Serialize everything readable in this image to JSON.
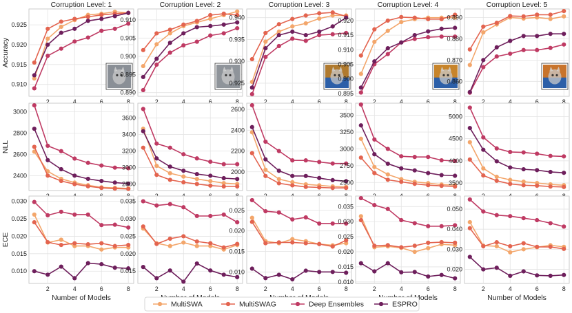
{
  "figure": {
    "x_label": "Number of Models",
    "row_labels": [
      "Accuracy",
      "NLL",
      "ECE"
    ],
    "column_titles": [
      "Corruption Level: 1",
      "Corruption Level: 2",
      "Corruption Level: 3",
      "Corruption Level: 4",
      "Corruption Level: 5"
    ],
    "thumbnail_description_tints": [
      "#8a8f96",
      "#8f949a",
      "#b07a2e",
      "#c7842a",
      "#c8742c"
    ]
  },
  "legend": [
    {
      "name": "MultiSWA",
      "color": "#f3a66b"
    },
    {
      "name": "MultiSWAG",
      "color": "#e3644f"
    },
    {
      "name": "Deep Ensembles",
      "color": "#bf3a63"
    },
    {
      "name": "ESPRO",
      "color": "#6e1f5c"
    }
  ],
  "chart_data": {
    "type": "line",
    "x": [
      1,
      2,
      3,
      4,
      5,
      6,
      7,
      8
    ],
    "x_ticks": [
      2,
      4,
      6,
      8
    ],
    "xlabel": "Number of Models",
    "series_names": [
      "MultiSWA",
      "MultiSWAG",
      "Deep Ensembles",
      "ESPRO"
    ],
    "panels": [
      {
        "row": 0,
        "col": 0,
        "title": "Corruption Level: 1",
        "ylabel": "Accuracy",
        "ylim": [
          0.907,
          0.929
        ],
        "yticks": [
          "0.910",
          "0.915",
          "0.920",
          "0.925"
        ],
        "ytick_values": [
          0.91,
          0.915,
          0.92,
          0.925
        ],
        "series": [
          [
            0.9115,
            0.9215,
            0.9245,
            0.9262,
            0.9275,
            0.9278,
            0.9283,
            0.928
          ],
          [
            0.9155,
            0.924,
            0.9258,
            0.9265,
            0.927,
            0.9275,
            0.9278,
            0.928
          ],
          [
            0.909,
            0.9172,
            0.919,
            0.9208,
            0.9218,
            0.9235,
            0.924,
            0.9253
          ],
          [
            0.9123,
            0.92,
            0.923,
            0.924,
            0.926,
            0.9265,
            0.9272,
            0.928
          ]
        ]
      },
      {
        "row": 0,
        "col": 1,
        "title": "Corruption Level: 2",
        "ylabel": "",
        "ylim": [
          0.889,
          0.913
        ],
        "yticks": [
          "0.890",
          "0.895",
          "0.900",
          "0.905",
          "0.910"
        ],
        "ytick_values": [
          0.89,
          0.895,
          0.9,
          0.905,
          0.91
        ],
        "series": [
          [
            0.8973,
            0.9033,
            0.9063,
            0.9083,
            0.9093,
            0.9103,
            0.9113,
            0.9123
          ],
          [
            0.9017,
            0.9063,
            0.9073,
            0.9087,
            0.9097,
            0.9113,
            0.9117,
            0.9113
          ],
          [
            0.8907,
            0.8977,
            0.901,
            0.903,
            0.904,
            0.9057,
            0.9063,
            0.9077
          ],
          [
            0.8943,
            0.8993,
            0.9037,
            0.9063,
            0.908,
            0.9083,
            0.9087,
            0.9093
          ]
        ]
      },
      {
        "row": 0,
        "col": 2,
        "title": "Corruption Level: 3",
        "ylabel": "",
        "ylim": [
          0.922,
          0.942
        ],
        "yticks": [
          "0.925",
          "0.930",
          "0.935",
          "0.940"
        ],
        "ytick_values": [
          0.925,
          0.93,
          0.935,
          0.94
        ],
        "series": [
          [
            0.9253,
            0.9345,
            0.9368,
            0.938,
            0.9387,
            0.9398,
            0.9405,
            0.9405
          ],
          [
            0.9305,
            0.9365,
            0.9385,
            0.9397,
            0.9405,
            0.941,
            0.9412,
            0.9403
          ],
          [
            0.9225,
            0.931,
            0.9335,
            0.9352,
            0.9347,
            0.936,
            0.9362,
            0.9365
          ],
          [
            0.924,
            0.933,
            0.936,
            0.9368,
            0.936,
            0.9368,
            0.938,
            0.94
          ]
        ]
      },
      {
        "row": 0,
        "col": 3,
        "title": "Corruption Level: 4",
        "ylabel": "",
        "ylim": [
          0.894,
          0.924
        ],
        "yticks": [
          "0.895",
          "0.900",
          "0.905",
          "0.910",
          "0.915",
          "0.920"
        ],
        "ytick_values": [
          0.895,
          0.9,
          0.905,
          0.91,
          0.915,
          0.92
        ],
        "series": [
          [
            0.9017,
            0.9127,
            0.9165,
            0.9195,
            0.9205,
            0.921,
            0.921,
            0.921
          ],
          [
            0.908,
            0.917,
            0.92,
            0.9212,
            0.921,
            0.9205,
            0.9205,
            0.922
          ],
          [
            0.8953,
            0.905,
            0.9085,
            0.9125,
            0.9137,
            0.9143,
            0.9145,
            0.9145
          ],
          [
            0.897,
            0.906,
            0.9105,
            0.9125,
            0.915,
            0.9163,
            0.9172,
            0.9175
          ]
        ]
      },
      {
        "row": 0,
        "col": 4,
        "title": "Corruption Level: 5",
        "ylabel": "",
        "ylim": [
          0.853,
          0.894
        ],
        "yticks": [
          "0.860",
          "0.870",
          "0.880",
          "0.890"
        ],
        "ytick_values": [
          0.86,
          0.87,
          0.88,
          0.89
        ],
        "series": [
          [
            0.8677,
            0.883,
            0.8867,
            0.89,
            0.8895,
            0.89,
            0.8893,
            0.8905
          ],
          [
            0.875,
            0.8857,
            0.8875,
            0.8907,
            0.8905,
            0.8913,
            0.8913,
            0.893
          ],
          [
            0.8547,
            0.8667,
            0.8717,
            0.873,
            0.8747,
            0.8747,
            0.8757,
            0.8773
          ],
          [
            0.855,
            0.87,
            0.876,
            0.879,
            0.8813,
            0.8813,
            0.8823,
            0.8823
          ]
        ]
      },
      {
        "row": 1,
        "col": 0,
        "title": "",
        "ylabel": "NLL",
        "ylim": [
          2260,
          3080
        ],
        "yticks": [
          "2400",
          "2600",
          "2800",
          "3000"
        ],
        "ytick_values": [
          2400,
          2600,
          2800,
          3000
        ],
        "series": [
          [
            2625,
            2440,
            2370,
            2335,
            2310,
            2290,
            2285,
            2280
          ],
          [
            2670,
            2400,
            2350,
            2320,
            2300,
            2285,
            2278,
            2275
          ],
          [
            3060,
            2680,
            2630,
            2560,
            2520,
            2495,
            2475,
            2470
          ],
          [
            2840,
            2545,
            2460,
            2400,
            2370,
            2350,
            2335,
            2325
          ]
        ]
      },
      {
        "row": 1,
        "col": 1,
        "title": "",
        "ylabel": "",
        "ylim": [
          2720,
          3780
        ],
        "yticks": [
          "2800",
          "3000",
          "3200",
          "3400",
          "3600"
        ],
        "ytick_values": [
          2800,
          3000,
          3200,
          3400,
          3600
        ],
        "series": [
          [
            3470,
            3020,
            2930,
            2890,
            2860,
            2835,
            2810,
            2800
          ],
          [
            3240,
            2910,
            2850,
            2820,
            2800,
            2780,
            2770,
            2770
          ],
          [
            3710,
            3290,
            3240,
            3160,
            3110,
            3070,
            3040,
            3040
          ],
          [
            3440,
            3110,
            3010,
            2960,
            2920,
            2900,
            2870,
            2860
          ]
        ]
      },
      {
        "row": 1,
        "col": 2,
        "title": "",
        "ylabel": "",
        "ylim": [
          1820,
          2660
        ],
        "yticks": [
          "2000",
          "2200",
          "2400",
          "2600"
        ],
        "ytick_values": [
          2000,
          2200,
          2400,
          2600
        ],
        "series": [
          [
            2380,
            2020,
            1930,
            1900,
            1880,
            1870,
            1860,
            1855
          ],
          [
            2180,
            1960,
            1890,
            1870,
            1855,
            1850,
            1845,
            1845
          ],
          [
            2640,
            2290,
            2200,
            2110,
            2110,
            2095,
            2080,
            2080
          ],
          [
            2430,
            2120,
            2010,
            1960,
            1960,
            1940,
            1920,
            1910
          ]
        ]
      },
      {
        "row": 1,
        "col": 3,
        "title": "",
        "ylabel": "",
        "ylim": [
          2380,
          3680
        ],
        "yticks": [
          "2500",
          "2750",
          "3000",
          "3250",
          "3500"
        ],
        "ytick_values": [
          2500,
          2750,
          3000,
          3250,
          3500
        ],
        "series": [
          [
            3150,
            2730,
            2620,
            2550,
            2510,
            2490,
            2470,
            2460
          ],
          [
            2870,
            2640,
            2540,
            2510,
            2480,
            2460,
            2450,
            2440
          ],
          [
            3660,
            3140,
            3000,
            2890,
            2880,
            2880,
            2830,
            2820
          ],
          [
            3350,
            2920,
            2780,
            2710,
            2680,
            2640,
            2610,
            2600
          ]
        ]
      },
      {
        "row": 1,
        "col": 4,
        "title": "",
        "ylabel": "",
        "ylim": [
          3330,
          5300
        ],
        "yticks": [
          "3500",
          "4000",
          "4500",
          "5000"
        ],
        "ytick_values": [
          3500,
          4000,
          4500,
          5000
        ],
        "series": [
          [
            4420,
            3830,
            3640,
            3570,
            3530,
            3500,
            3470,
            3450
          ],
          [
            4030,
            3670,
            3550,
            3480,
            3450,
            3440,
            3420,
            3410
          ],
          [
            5200,
            4530,
            4280,
            4200,
            4190,
            4160,
            4110,
            4100
          ],
          [
            4740,
            4250,
            3990,
            3850,
            3810,
            3790,
            3750,
            3730
          ]
        ]
      },
      {
        "row": 2,
        "col": 0,
        "title": "",
        "ylabel": "ECE",
        "ylim": [
          0.0065,
          0.0315
        ],
        "yticks": [
          "0.010",
          "0.015",
          "0.020",
          "0.025",
          "0.030"
        ],
        "ytick_values": [
          0.01,
          0.015,
          0.02,
          0.025,
          0.03
        ],
        "series": [
          [
            0.0262,
            0.0182,
            0.019,
            0.0172,
            0.0172,
            0.0162,
            0.0168,
            0.0168
          ],
          [
            0.024,
            0.0183,
            0.0175,
            0.018,
            0.0177,
            0.018,
            0.0172,
            0.0175
          ],
          [
            0.0298,
            0.026,
            0.027,
            0.0262,
            0.0262,
            0.0232,
            0.0233,
            0.0225
          ],
          [
            0.01,
            0.009,
            0.0113,
            0.008,
            0.0123,
            0.012,
            0.011,
            0.0108
          ]
        ]
      },
      {
        "row": 2,
        "col": 1,
        "title": "",
        "ylabel": "",
        "ylim": [
          0.0115,
          0.0365
        ],
        "yticks": [
          "0.015",
          "0.020",
          "0.025",
          "0.030",
          "0.035"
        ],
        "ytick_values": [
          0.015,
          0.02,
          0.025,
          0.03,
          0.035
        ],
        "series": [
          [
            0.0272,
            0.023,
            0.0222,
            0.0232,
            0.0222,
            0.0222,
            0.0212,
            0.0225
          ],
          [
            0.0278,
            0.0228,
            0.0243,
            0.025,
            0.0235,
            0.023,
            0.0218,
            0.0228
          ],
          [
            0.035,
            0.0338,
            0.0342,
            0.0333,
            0.0308,
            0.0308,
            0.0312,
            0.029
          ],
          [
            0.0162,
            0.013,
            0.0152,
            0.012,
            0.0172,
            0.0152,
            0.014,
            0.0133
          ]
        ]
      },
      {
        "row": 2,
        "col": 2,
        "title": "",
        "ylabel": "",
        "ylim": [
          0.0072,
          0.0285
        ],
        "yticks": [
          "0.010",
          "0.015",
          "0.020",
          "0.025"
        ],
        "ytick_values": [
          0.01,
          0.015,
          0.02,
          0.025
        ],
        "series": [
          [
            0.0232,
            0.0175,
            0.017,
            0.018,
            0.0175,
            0.0168,
            0.0165,
            0.017
          ],
          [
            0.0222,
            0.017,
            0.0172,
            0.0172,
            0.017,
            0.0168,
            0.0162,
            0.0177
          ],
          [
            0.0275,
            0.0248,
            0.0245,
            0.0228,
            0.0233,
            0.0218,
            0.0218,
            0.0218
          ],
          [
            0.0108,
            0.0085,
            0.0093,
            0.0082,
            0.0103,
            0.01,
            0.01,
            0.0098
          ]
        ]
      },
      {
        "row": 2,
        "col": 3,
        "title": "",
        "ylabel": "",
        "ylim": [
          0.0095,
          0.0385
        ],
        "yticks": [
          "0.010",
          "0.015",
          "0.020",
          "0.025",
          "0.030",
          "0.035"
        ],
        "ytick_values": [
          0.01,
          0.015,
          0.02,
          0.025,
          0.03,
          0.035
        ],
        "series": [
          [
            0.0318,
            0.0215,
            0.0218,
            0.0213,
            0.02,
            0.0212,
            0.0225,
            0.0222
          ],
          [
            0.0305,
            0.022,
            0.0222,
            0.0215,
            0.022,
            0.023,
            0.0232,
            0.023
          ],
          [
            0.0378,
            0.0355,
            0.0342,
            0.0305,
            0.0295,
            0.0285,
            0.0285,
            0.0288
          ],
          [
            0.0162,
            0.0135,
            0.0162,
            0.0132,
            0.0133,
            0.0118,
            0.0123,
            0.0112
          ]
        ]
      },
      {
        "row": 2,
        "col": 4,
        "title": "",
        "ylabel": "",
        "ylim": [
          0.013,
          0.0565
        ],
        "yticks": [
          "0.020",
          "0.030",
          "0.040",
          "0.050"
        ],
        "ytick_values": [
          0.02,
          0.03,
          0.04,
          0.05
        ],
        "series": [
          [
            0.0435,
            0.0318,
            0.0315,
            0.0285,
            0.03,
            0.031,
            0.032,
            0.0312
          ],
          [
            0.0405,
            0.0315,
            0.0335,
            0.0315,
            0.033,
            0.0312,
            0.0312,
            0.0302
          ],
          [
            0.0548,
            0.0488,
            0.047,
            0.0465,
            0.0455,
            0.0445,
            0.043,
            0.0413
          ],
          [
            0.0262,
            0.02,
            0.0208,
            0.0168,
            0.019,
            0.017,
            0.0168,
            0.0172
          ]
        ]
      }
    ]
  }
}
